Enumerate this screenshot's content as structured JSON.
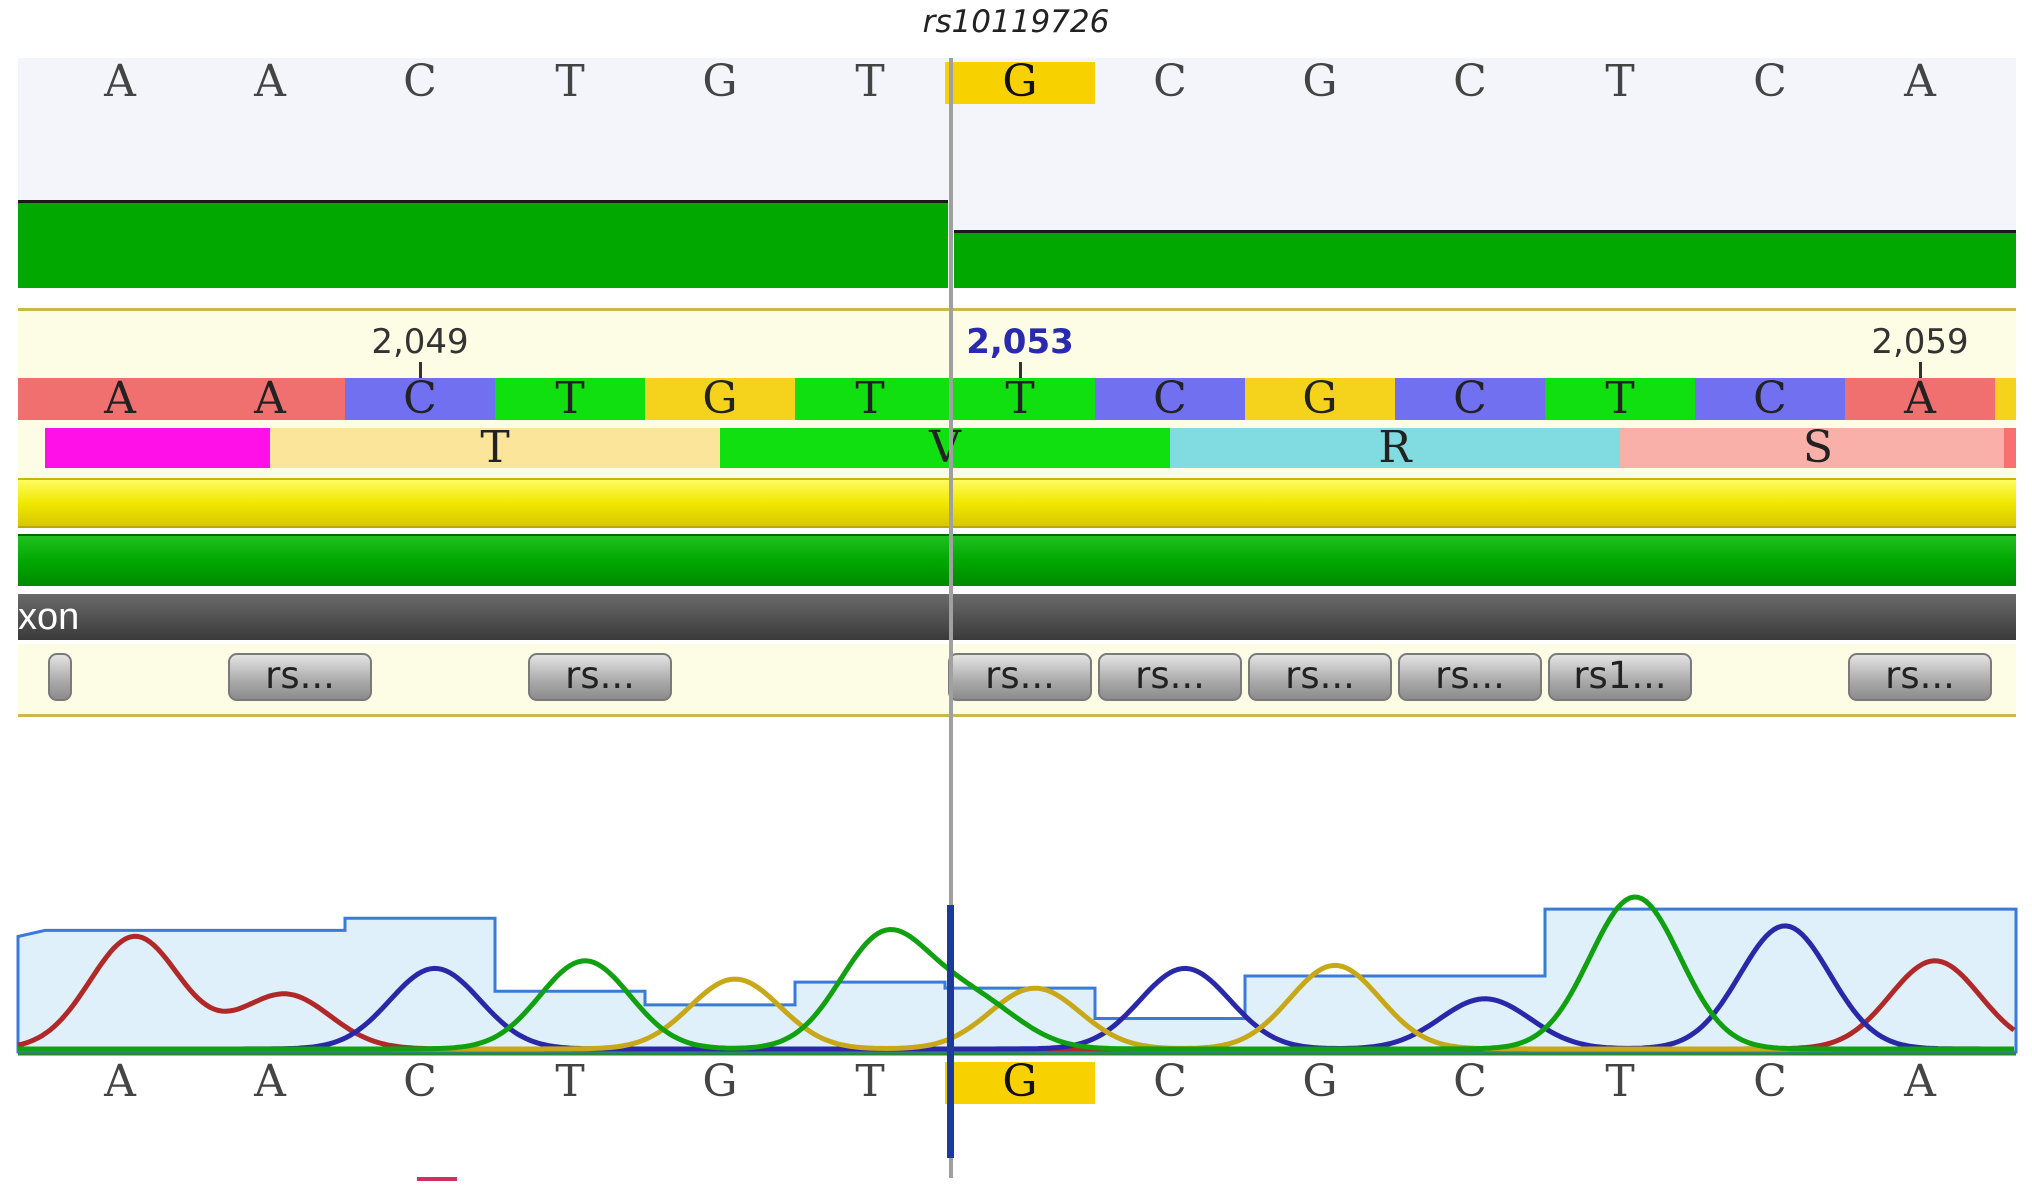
{
  "snp_id": "rs10119726",
  "colors": {
    "A": "#f07070",
    "C": "#7070f0",
    "G": "#f5d21c",
    "T": "#10e010",
    "coverage": "#00a800",
    "highlight": "#f8d200",
    "exon_track": "#505050",
    "ref_track_bg": "#fdfde6",
    "marker_coord": "#2a2ab0"
  },
  "top_sequence": [
    "A",
    "A",
    "C",
    "T",
    "G",
    "T",
    "G",
    "C",
    "G",
    "C",
    "T",
    "C",
    "A"
  ],
  "highlight_index": 6,
  "reference": {
    "bases": [
      "A",
      "A",
      "C",
      "T",
      "G",
      "T",
      "T",
      "C",
      "G",
      "C",
      "T",
      "C",
      "A"
    ],
    "coordinates": [
      {
        "label": "2,049",
        "index": 2,
        "marked": false
      },
      {
        "label": "2,053",
        "index": 6,
        "marked": true
      },
      {
        "label": "2,059",
        "index": 12,
        "marked": false
      }
    ]
  },
  "amino_acids": [
    {
      "label": "",
      "color": "#ff10e8",
      "start": 0,
      "end": 1.5
    },
    {
      "label": "T",
      "color": "#fbe59a",
      "start": 1.5,
      "end": 4.5
    },
    {
      "label": "V",
      "color": "#10e010",
      "start": 4.5,
      "end": 7.5
    },
    {
      "label": "R",
      "color": "#80dce0",
      "start": 7.5,
      "end": 10.5
    },
    {
      "label": "S",
      "color": "#f8b0a8",
      "start": 10.5,
      "end": 13.5
    }
  ],
  "exon_label": "xon",
  "snp_buttons": [
    {
      "label": "",
      "start": 0,
      "end": 0.2
    },
    {
      "label": "rs...",
      "start": 1.2,
      "end": 2.2
    },
    {
      "label": "rs...",
      "start": 3.2,
      "end": 4.2
    },
    {
      "label": "rs...",
      "start": 6.0,
      "end": 7.0
    },
    {
      "label": "rs...",
      "start": 7.0,
      "end": 8.0
    },
    {
      "label": "rs...",
      "start": 8.0,
      "end": 9.0
    },
    {
      "label": "rs...",
      "start": 9.0,
      "end": 10.0
    },
    {
      "label": "rs1...",
      "start": 10.0,
      "end": 11.0
    },
    {
      "label": "rs...",
      "start": 12.0,
      "end": 13.0
    }
  ],
  "bottom_sequence": [
    "A",
    "A",
    "C",
    "T",
    "G",
    "T",
    "G",
    "C",
    "G",
    "C",
    "T",
    "C",
    "A"
  ],
  "chromatogram": {
    "peaks": [
      {
        "base": "A",
        "pos": 0.6,
        "height": 0.74
      },
      {
        "base": "A",
        "pos": 1.6,
        "height": 0.36
      },
      {
        "base": "C",
        "pos": 2.6,
        "height": 0.53
      },
      {
        "base": "T",
        "pos": 3.6,
        "height": 0.58
      },
      {
        "base": "G",
        "pos": 4.6,
        "height": 0.46
      },
      {
        "base": "T",
        "pos": 5.6,
        "height": 0.74
      },
      {
        "base": "G",
        "pos": 6.6,
        "height": 0.4
      },
      {
        "base": "T",
        "pos": 6.2,
        "height": 0.3
      },
      {
        "base": "C",
        "pos": 7.6,
        "height": 0.53
      },
      {
        "base": "G",
        "pos": 8.6,
        "height": 0.55
      },
      {
        "base": "C",
        "pos": 9.6,
        "height": 0.33
      },
      {
        "base": "T",
        "pos": 10.6,
        "height": 1.0
      },
      {
        "base": "C",
        "pos": 11.6,
        "height": 0.81
      },
      {
        "base": "A",
        "pos": 12.6,
        "height": 0.58
      }
    ]
  }
}
